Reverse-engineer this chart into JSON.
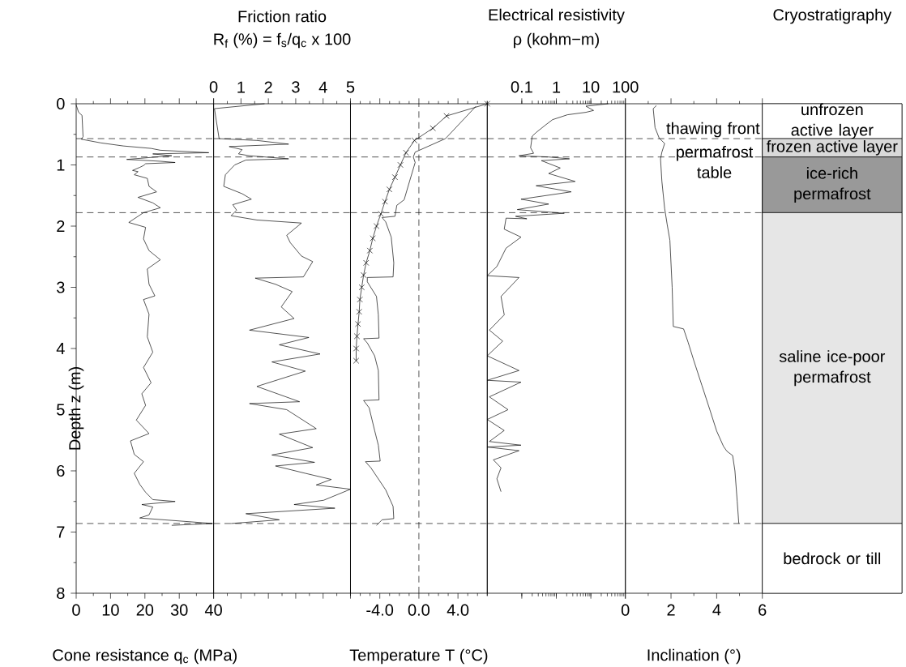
{
  "chart_data": [
    {
      "type": "line",
      "xlabel": "Cone resistance q$_{c}$ (MPa)",
      "ylabel": "Depth z (m)",
      "xlim": [
        0,
        40
      ],
      "xticks": [
        0,
        {
          "value": 5,
          "label": null
        },
        10,
        {
          "value": 15,
          "label": null
        },
        20,
        {
          "value": 25,
          "label": null
        },
        30,
        {
          "value": 35,
          "label": null
        },
        40
      ],
      "ylim": [
        8,
        0
      ],
      "yticks": [
        0,
        {
          "value": 0.5,
          "label": null
        },
        1,
        {
          "value": 1.5,
          "label": null
        },
        2,
        {
          "value": 2.5,
          "label": null
        },
        3,
        {
          "value": 3.5,
          "label": null
        },
        4,
        {
          "value": 4.5,
          "label": null
        },
        5,
        {
          "value": 5.5,
          "label": null
        },
        6,
        {
          "value": 6.5,
          "label": null
        },
        7,
        {
          "value": 7.5,
          "label": null
        },
        8
      ],
      "ref_lines": [
        {
          "axis": "y",
          "value": 0.57,
          "line_style": "dashed"
        },
        {
          "axis": "y",
          "value": 0.87,
          "line_style": "dashed"
        },
        {
          "axis": "y",
          "value": 1.78,
          "line_style": "dashed"
        },
        {
          "axis": "y",
          "value": 6.86,
          "line_style": "dashed"
        }
      ],
      "series": [
        {
          "color": "#000000",
          "x": [
            0,
            0.7,
            1.7,
            2.0,
            1.5,
            7.2,
            13.7,
            21.8,
            24.5,
            38.6,
            22.3,
            27.8,
            14.7,
            24.5,
            28.8,
            20.2,
            19.6,
            18.5,
            16.4,
            18.0,
            16.9,
            20.7,
            21.2,
            23.4,
            18.0,
            22.3,
            24.5,
            19.6,
            15.3,
            20.2,
            19.6,
            21.2,
            24.5,
            20.7,
            21.2,
            22.9,
            19.6,
            21.2,
            20.7,
            22.3,
            19.6,
            21.8,
            19.1,
            20.2,
            17.5,
            21.2,
            15.8,
            16.9,
            19.6,
            16.9,
            18.5,
            20.2,
            22.3,
            28.8,
            19.1,
            22.3,
            21.2,
            18.5,
            39.7,
            27.8
          ],
          "values": [
            0.02,
            0.14,
            0.19,
            0.54,
            0.58,
            0.64,
            0.69,
            0.73,
            0.76,
            0.8,
            0.82,
            0.85,
            0.91,
            0.94,
            0.96,
            0.98,
            1.01,
            1.04,
            1.09,
            1.11,
            1.16,
            1.22,
            1.35,
            1.44,
            1.53,
            1.62,
            1.7,
            1.78,
            1.94,
            2.02,
            2.21,
            2.4,
            2.55,
            2.7,
            2.95,
            3.14,
            3.2,
            3.44,
            3.81,
            4.06,
            4.31,
            4.56,
            4.74,
            4.93,
            5.17,
            5.39,
            5.51,
            5.73,
            5.85,
            6.04,
            6.22,
            6.35,
            6.47,
            6.5,
            6.55,
            6.59,
            6.72,
            6.77,
            6.86,
            6.89
          ]
        }
      ]
    },
    {
      "type": "line",
      "title": "Friction ratio",
      "xlabel": "R$_{f}$ (%) =  f$_{s}$/q$_{c}$ x 100",
      "xlim": [
        0,
        5
      ],
      "xticks": [
        0,
        {
          "value": 0.5,
          "label": null
        },
        1,
        {
          "value": 1.5,
          "label": null
        },
        2,
        {
          "value": 2.5,
          "label": null
        },
        3,
        {
          "value": 3.5,
          "label": null
        },
        4,
        {
          "value": 4.5,
          "label": null
        },
        5
      ],
      "ylim": [
        8,
        0
      ],
      "tick_labels": "x",
      "ref_lines": [
        {
          "axis": "y",
          "value": 0.57,
          "line_style": "dashed"
        },
        {
          "axis": "y",
          "value": 0.87,
          "line_style": "dashed"
        },
        {
          "axis": "y",
          "value": 1.78,
          "line_style": "dashed"
        },
        {
          "axis": "y",
          "value": 6.86,
          "line_style": "dashed"
        }
      ],
      "series": [
        {
          "color": "#000000",
          "x": [
            1.86,
            0.03,
            0.2,
            1.58,
            2.74,
            0.57,
            1.04,
            0.91,
            1.31,
            2.74,
            1.18,
            0.77,
            0.43,
            0.37,
            1.04,
            1.38,
            0.7,
            0.84,
            0.64,
            1.58,
            3.21,
            2.67,
            2.8,
            3.21,
            3.62,
            3.28,
            1.52,
            2.26,
            2.87,
            2.47,
            2.94,
            1.31,
            3.48,
            2.4,
            3.89,
            2.13,
            3.35,
            1.58,
            3.14,
            1.31,
            2.67,
            3.75,
            2.4,
            3.62,
            2.13,
            3.69,
            2.26,
            3.35,
            4.3,
            3.75,
            5.0,
            4.02,
            2.94,
            4.43,
            1.18,
            2.4,
            0.64
          ],
          "values": [
            0,
            0.08,
            0.57,
            0.6,
            0.66,
            0.7,
            0.75,
            0.82,
            0.85,
            0.9,
            0.92,
            1.0,
            1.16,
            1.35,
            1.47,
            1.56,
            1.65,
            1.74,
            1.83,
            1.9,
            1.95,
            2.15,
            2.27,
            2.49,
            2.58,
            2.83,
            2.85,
            2.95,
            3.07,
            3.32,
            3.51,
            3.7,
            3.82,
            3.94,
            4.09,
            4.22,
            4.37,
            4.62,
            4.87,
            4.9,
            5.0,
            5.31,
            5.4,
            5.62,
            5.74,
            5.86,
            5.92,
            6.04,
            6.14,
            6.23,
            6.3,
            6.48,
            6.55,
            6.61,
            6.7,
            6.8,
            6.86
          ]
        }
      ]
    },
    {
      "type": "line",
      "xlabel": "Temperature T (°C)",
      "xlim": [
        -7,
        7
      ],
      "xticks": [
        {
          "value": -7,
          "label": null
        },
        {
          "value": -6,
          "label": null
        },
        {
          "value": -5,
          "label": null
        },
        {
          "value": -4,
          "label": "-4.0"
        },
        {
          "value": -3,
          "label": null
        },
        {
          "value": -2,
          "label": null
        },
        {
          "value": -1,
          "label": null
        },
        {
          "value": 0,
          "label": "0.0"
        },
        {
          "value": 1,
          "label": null
        },
        {
          "value": 2,
          "label": null
        },
        {
          "value": 3,
          "label": null
        },
        {
          "value": 4,
          "label": "4.0"
        },
        {
          "value": 5,
          "label": null
        },
        {
          "value": 6,
          "label": null
        },
        {
          "value": 7,
          "label": null
        }
      ],
      "ylim": [
        8,
        0
      ],
      "tick_labels": "x",
      "ref_lines": [
        {
          "axis": "x",
          "value": 0,
          "line_style": "dashed"
        },
        {
          "axis": "y",
          "value": 0.57,
          "line_style": "dashed"
        },
        {
          "axis": "y",
          "value": 0.87,
          "line_style": "dashed"
        },
        {
          "axis": "y",
          "value": 1.78,
          "line_style": "dashed"
        },
        {
          "axis": "y",
          "value": 6.86,
          "line_style": "dashed"
        }
      ],
      "series": [
        {
          "color": "#000000",
          "x": [
            5.85,
            2.72,
            0.19,
            -0.38,
            -0.57,
            -0.38,
            -0.94,
            -1.51,
            -2.26,
            -2.45,
            -3.77,
            -3.4,
            -2.83,
            -2.57,
            -2.64,
            -5.28,
            -5.28,
            -4.34,
            -4.15,
            -4.08,
            -5.66,
            -5.28,
            -4.53,
            -4.15,
            -4.08,
            -5.66,
            -5.09,
            -4.53,
            -4.15,
            -3.96,
            -5.47,
            -4.91,
            -3.4,
            -2.64,
            -2.57,
            -3.77,
            -4.34
          ],
          "values": [
            0.04,
            0.57,
            0.75,
            0.79,
            0.87,
            0.96,
            1.26,
            1.57,
            1.66,
            1.84,
            1.86,
            1.93,
            2.18,
            2.6,
            2.83,
            2.84,
            2.91,
            3.15,
            3.45,
            3.83,
            3.84,
            3.91,
            4.12,
            4.36,
            4.84,
            4.85,
            4.97,
            5.34,
            5.58,
            5.84,
            5.85,
            5.95,
            6.31,
            6.58,
            6.78,
            6.8,
            6.89
          ]
        },
        {
          "color": "#000000",
          "marker": "cross",
          "x": [
            7.0,
            2.83,
            1.43,
            -0.45,
            -1.32,
            -1.89,
            -2.45,
            -3.02,
            -3.47,
            -3.89,
            -4.34,
            -4.72,
            -5.02,
            -5.4,
            -5.66,
            -5.85,
            -6.04,
            -6.11,
            -6.23,
            -6.34,
            -6.42,
            -6.42
          ],
          "values": [
            0,
            0.2,
            0.4,
            0.6,
            0.8,
            1.0,
            1.2,
            1.4,
            1.6,
            1.8,
            2.0,
            2.2,
            2.4,
            2.6,
            2.8,
            3.0,
            3.2,
            3.4,
            3.6,
            3.8,
            4.0,
            4.2
          ]
        }
      ]
    },
    {
      "type": "line",
      "title": "Electrical resistivity",
      "xlabel": "ρ (kohm−m)",
      "log": "x",
      "xlim": [
        0.01,
        100
      ],
      "xticks": [
        {
          "value": 0.01,
          "label": null
        },
        0.1,
        1,
        10,
        100
      ],
      "ylim": [
        8,
        0
      ],
      "tick_labels": "x",
      "ref_lines": [
        {
          "axis": "y",
          "value": 0.57,
          "line_style": "dashed"
        },
        {
          "axis": "y",
          "value": 0.87,
          "line_style": "dashed"
        },
        {
          "axis": "y",
          "value": 1.78,
          "line_style": "dashed"
        },
        {
          "axis": "y",
          "value": 6.86,
          "line_style": "dashed"
        }
      ],
      "series": [
        {
          "color": "#000000",
          "x": [
            32,
            7.2,
            12,
            7.2,
            2.1,
            0.78,
            0.48,
            0.26,
            0.2,
            0.18,
            0.22,
            0.083,
            0.6,
            2.4,
            0.37,
            1.3,
            0.6,
            3.5,
            0.26,
            2.7,
            0.095,
            0.6,
            0.074,
            1.7,
            0.066,
            0.14,
            0.035,
            0.031,
            0.095,
            0.035,
            0.019,
            0.01,
            0.083,
            0.025,
            0.031,
            0.0115,
            0.028,
            0.01,
            0.083,
            0.01,
            0.095,
            0.0115,
            0.04,
            0.01,
            0.031,
            0.0115,
            0.095,
            0.01,
            0.083,
            0.015,
            0.025,
            0.019,
            0.025
          ],
          "values": [
            0,
            0.04,
            0.11,
            0.14,
            0.18,
            0.26,
            0.35,
            0.47,
            0.53,
            0.72,
            0.81,
            0.85,
            0.87,
            0.9,
            0.93,
            1.05,
            1.14,
            1.27,
            1.34,
            1.44,
            1.56,
            1.64,
            1.73,
            1.79,
            1.84,
            1.88,
            1.87,
            2.05,
            2.18,
            2.36,
            2.66,
            2.81,
            2.84,
            3.15,
            3.45,
            3.7,
            3.88,
            4.12,
            4.36,
            4.52,
            4.55,
            4.79,
            5.0,
            5.16,
            5.34,
            5.52,
            5.58,
            5.61,
            5.67,
            5.82,
            5.95,
            6.13,
            6.34
          ]
        }
      ]
    },
    {
      "type": "line",
      "xlabel": "Inclination (°)",
      "xlim": [
        0,
        6
      ],
      "xticks": [
        0,
        {
          "value": 1,
          "label": null
        },
        2,
        {
          "value": 3,
          "label": null
        },
        4,
        {
          "value": 5,
          "label": null
        },
        6
      ],
      "ylim": [
        8,
        0
      ],
      "tick_labels": "x",
      "ref_lines": [
        {
          "axis": "y",
          "value": 0.57,
          "line_style": "dashed"
        },
        {
          "axis": "y",
          "value": 0.87,
          "line_style": "dashed"
        },
        {
          "axis": "y",
          "value": 1.78,
          "line_style": "dashed"
        },
        {
          "axis": "y",
          "value": 6.86,
          "line_style": "dashed"
        }
      ],
      "annotations": [
        "thawing front",
        "permafrost table"
      ],
      "series": [
        {
          "color": "#000000",
          "x": [
            1.36,
            1.22,
            1.3,
            1.48,
            1.72,
            1.6,
            1.54,
            1.6,
            1.72,
            1.83,
            1.95,
            2.05,
            2.1,
            2.55,
            2.75,
            3.0,
            3.35,
            3.7,
            4.0,
            4.3,
            4.45,
            4.7,
            4.8,
            4.9,
            4.97
          ],
          "values": [
            0.03,
            0.08,
            0.39,
            0.56,
            0.65,
            0.79,
            0.9,
            1.27,
            1.71,
            1.97,
            2.23,
            3.0,
            3.64,
            3.68,
            3.9,
            4.2,
            4.6,
            5.0,
            5.35,
            5.6,
            5.68,
            5.75,
            6.0,
            6.5,
            6.86
          ]
        }
      ]
    },
    {
      "type": "bar",
      "stacked": true,
      "title": "Cryostratigraphy",
      "categories": [
        null
      ],
      "ylim": [
        8,
        0
      ],
      "tick_labels": false,
      "series": [
        {
          "name": "unfrozen active layer",
          "color": "#ffffff",
          "values": [
            0.57
          ]
        },
        {
          "name": "frozen active layer",
          "color": "#d9d9d9",
          "values": [
            0.3
          ]
        },
        {
          "name": "ice-rich permafrost",
          "color": "#999999",
          "values": [
            0.91
          ]
        },
        {
          "name": "saline ice-poor permafrost",
          "color": "#e6e6e6",
          "values": [
            5.08
          ]
        },
        {
          "name": "bedrock or till",
          "color": "#ffffff",
          "values": [
            1.14
          ]
        }
      ]
    }
  ]
}
